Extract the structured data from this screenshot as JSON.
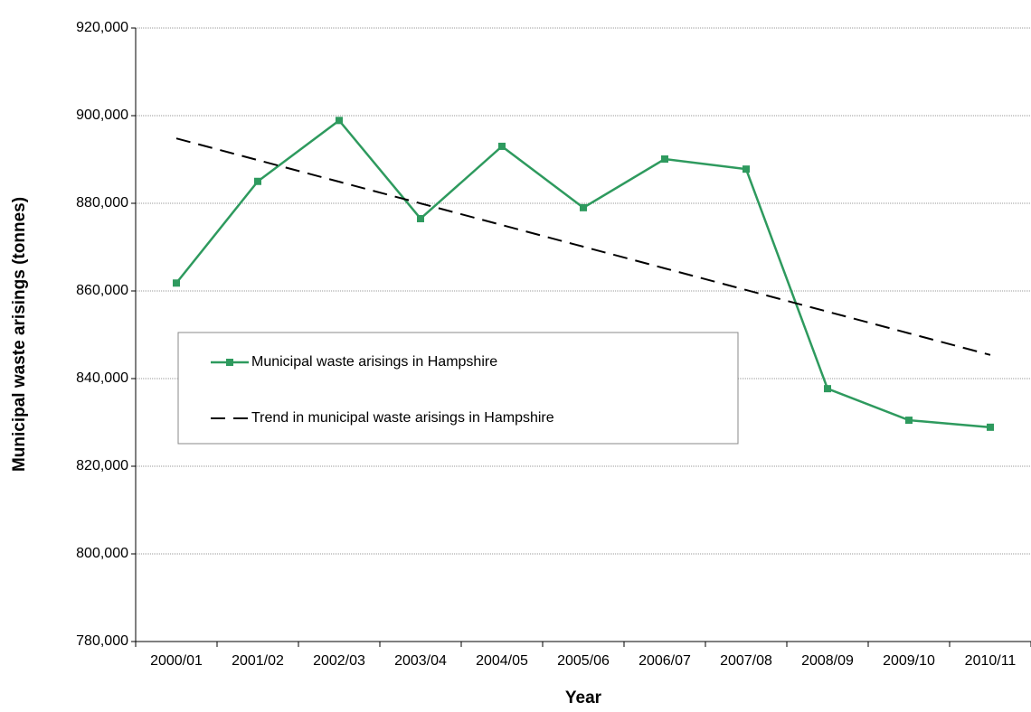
{
  "chart_data": {
    "type": "line",
    "x_label": "Year",
    "y_label": "Municipal waste arisings (tonnes)",
    "categories": [
      "2000/01",
      "2001/02",
      "2002/03",
      "2003/04",
      "2004/05",
      "2005/06",
      "2006/07",
      "2007/08",
      "2008/09",
      "2009/10",
      "2010/11"
    ],
    "series": [
      {
        "name": "Municipal waste arisings in Hampshire",
        "color": "#2e9a5e",
        "marker": "square",
        "dashed": false,
        "values": [
          861800,
          885000,
          898900,
          876500,
          893000,
          879000,
          890100,
          887800,
          837700,
          830500,
          828900
        ]
      },
      {
        "name": "Trend in municipal waste arisings in Hampshire",
        "color": "#000000",
        "marker": "none",
        "dashed": true,
        "values": [
          894800,
          889860,
          884920,
          879980,
          875040,
          870100,
          865160,
          860220,
          855280,
          850340,
          845400
        ]
      }
    ],
    "ylim": [
      780000,
      920000
    ],
    "yticks": [
      {
        "value": 780000,
        "label": "780,000"
      },
      {
        "value": 800000,
        "label": "800,000"
      },
      {
        "value": 820000,
        "label": "820,000"
      },
      {
        "value": 840000,
        "label": "840,000"
      },
      {
        "value": 860000,
        "label": "860,000"
      },
      {
        "value": 880000,
        "label": "880,000"
      },
      {
        "value": 900000,
        "label": "900,000"
      },
      {
        "value": 920000,
        "label": "920,000"
      }
    ],
    "grid": true
  }
}
